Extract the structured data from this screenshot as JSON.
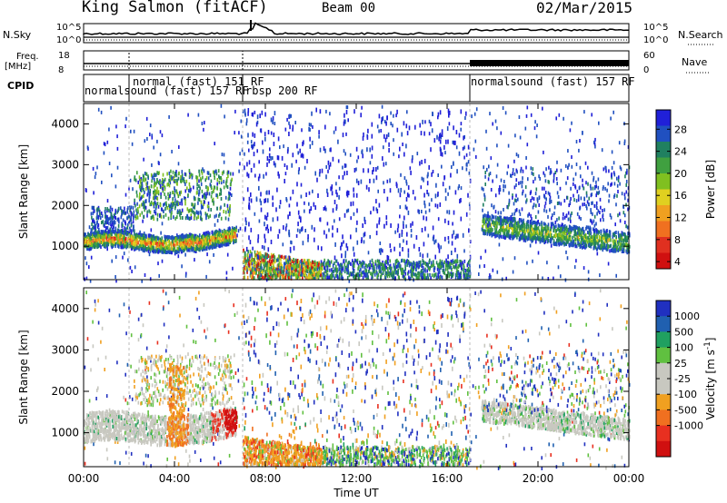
{
  "header": {
    "station": "King Salmon (fitACF)",
    "beam": "Beam 00",
    "date": "02/Mar/2015"
  },
  "top_panels": {
    "nsky_label": "N.Sky",
    "nsearch_label": "N.Search",
    "noise_ticks_left": [
      "10^5",
      "10^0"
    ],
    "noise_ticks_right": [
      "10^5",
      "10^0"
    ],
    "freq_label": [
      "Freq.",
      "[MHz]"
    ],
    "freq_ticks": [
      "18",
      "8"
    ],
    "nave_label": "Nave",
    "nave_ticks": [
      "60",
      "0"
    ],
    "cpid_label": "CPID",
    "cpid_segments": [
      {
        "label": "normalsound (fast) 157 RF",
        "start_h": 0,
        "end_h": 7.0
      },
      {
        "label": "normal (fast) 151 RF",
        "start_h": 2.0,
        "end_h": 7.0
      },
      {
        "label": "rbsp 200 RF",
        "start_h": 7.0,
        "end_h": 17.0
      },
      {
        "label": "normalsound (fast) 157 RF",
        "start_h": 17.0,
        "end_h": 24.0
      }
    ]
  },
  "power_colorbar": {
    "title": "Power [dB]",
    "ticks": [
      "28",
      "24",
      "20",
      "16",
      "12",
      "8",
      "4"
    ],
    "colors": [
      "#2020d8",
      "#2050c0",
      "#208060",
      "#40a040",
      "#80c020",
      "#e0d020",
      "#f0a020",
      "#f07020",
      "#e03020",
      "#d01010"
    ]
  },
  "velocity_colorbar": {
    "title": "Velocity [m s",
    "title_sup": "-1",
    "title_end": "]",
    "ticks": [
      "1000",
      "500",
      "100",
      "25",
      "-25",
      "-100",
      "-500",
      "-1000"
    ],
    "colors": [
      "#2030c0",
      "#2060b0",
      "#20a060",
      "#60c040",
      "#c8c8c0",
      "#c8c8c0",
      "#f0a020",
      "#f07020",
      "#e83020",
      "#d01010"
    ]
  },
  "axes": {
    "ylabel": "Slant Range [km]",
    "xlabel": "Time UT",
    "yticks": [
      "1000",
      "2000",
      "3000",
      "4000"
    ],
    "xticks": [
      "00:00",
      "04:00",
      "08:00",
      "12:00",
      "16:00",
      "20:00",
      "00:00"
    ]
  },
  "chart_data": {
    "type": "heatmap",
    "x_unit": "hours UT",
    "y_unit": "km",
    "xlim": [
      0,
      24
    ],
    "ylim": [
      180,
      4500
    ],
    "panels": [
      {
        "name": "Power",
        "clim": [
          3,
          30
        ]
      },
      {
        "name": "Velocity",
        "clim": [
          -1000,
          1000
        ]
      }
    ],
    "mode_boundaries_h": [
      2.0,
      7.0,
      17.0
    ]
  }
}
